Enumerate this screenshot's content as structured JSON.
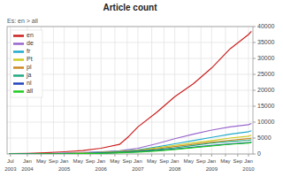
{
  "chart_data": {
    "type": "line",
    "title": "Article count",
    "subtitle": "Es: en > all",
    "xlim": [
      2003.45,
      2010.12
    ],
    "xticks": [
      {
        "value": 2003.542,
        "label": "Jul"
      },
      {
        "value": 2004.0,
        "label": "Jan"
      },
      {
        "value": 2004.375,
        "label": "May"
      },
      {
        "value": 2004.708,
        "label": "Sep"
      },
      {
        "value": 2005.0,
        "label": "Jan"
      },
      {
        "value": 2005.375,
        "label": "May"
      },
      {
        "value": 2005.708,
        "label": "Sep"
      },
      {
        "value": 2006.0,
        "label": "Jan"
      },
      {
        "value": 2006.375,
        "label": "May"
      },
      {
        "value": 2006.708,
        "label": "Sep"
      },
      {
        "value": 2007.0,
        "label": "Jan"
      },
      {
        "value": 2007.375,
        "label": "May"
      },
      {
        "value": 2007.708,
        "label": "Sep"
      },
      {
        "value": 2008.0,
        "label": "Jan"
      },
      {
        "value": 2008.375,
        "label": "May"
      },
      {
        "value": 2008.708,
        "label": "Sep"
      },
      {
        "value": 2009.0,
        "label": "Jan"
      },
      {
        "value": 2009.375,
        "label": "May"
      },
      {
        "value": 2009.708,
        "label": "Sep"
      },
      {
        "value": 2010.0,
        "label": "Jan"
      }
    ],
    "annotations": [
      {
        "x": 2003.542,
        "text": "2003"
      },
      {
        "x": 2004.0,
        "text": "2004"
      },
      {
        "x": 2005.0,
        "text": "2005"
      },
      {
        "x": 2006.0,
        "text": "2006"
      },
      {
        "x": 2007.0,
        "text": "2007"
      },
      {
        "x": 2008.0,
        "text": "2008"
      },
      {
        "x": 2009.0,
        "text": "2009"
      },
      {
        "x": 2010.0,
        "text": "2010"
      }
    ],
    "ylim": [
      0,
      40000
    ],
    "yticks": [
      0,
      5000,
      10000,
      15000,
      20000,
      25000,
      30000,
      35000,
      40000
    ],
    "grid": true,
    "legend": "upper left",
    "series": [
      {
        "name": "en",
        "color": "#cc2020",
        "x": [
          2003.5,
          2004.0,
          2004.5,
          2005.0,
          2005.5,
          2006.0,
          2006.5,
          2006.75,
          2007.0,
          2007.5,
          2008.0,
          2008.5,
          2009.0,
          2009.5,
          2010.0,
          2010.08
        ],
        "values": [
          80,
          200,
          400,
          700,
          1100,
          1800,
          3000,
          5500,
          8500,
          13000,
          18000,
          22000,
          27000,
          33000,
          37500,
          38500
        ]
      },
      {
        "name": "de",
        "color": "#9966cc",
        "x": [
          2003.5,
          2004.0,
          2004.5,
          2005.0,
          2005.5,
          2006.0,
          2006.5,
          2007.0,
          2007.5,
          2008.0,
          2008.5,
          2009.0,
          2009.5,
          2010.0,
          2010.08
        ],
        "values": [
          30,
          60,
          120,
          250,
          450,
          700,
          1000,
          1800,
          3200,
          4800,
          6200,
          7500,
          8500,
          9200,
          9600
        ]
      },
      {
        "name": "fr",
        "color": "#20aacc",
        "x": [
          2003.5,
          2004.0,
          2004.5,
          2005.0,
          2005.5,
          2006.0,
          2006.5,
          2007.0,
          2007.5,
          2008.0,
          2008.5,
          2009.0,
          2009.5,
          2010.0,
          2010.08
        ],
        "values": [
          15,
          30,
          70,
          180,
          320,
          550,
          850,
          1300,
          2200,
          3200,
          4200,
          5200,
          6200,
          7000,
          7300
        ]
      },
      {
        "name": "Pt",
        "color": "#cccc20",
        "x": [
          2003.5,
          2004.0,
          2004.5,
          2005.0,
          2005.5,
          2006.0,
          2006.5,
          2007.0,
          2007.5,
          2008.0,
          2008.5,
          2009.0,
          2009.5,
          2010.0,
          2010.08
        ],
        "values": [
          8,
          18,
          45,
          130,
          280,
          480,
          780,
          1150,
          1900,
          2700,
          3500,
          4200,
          5000,
          5600,
          5900
        ]
      },
      {
        "name": "pl",
        "color": "#cc8820",
        "x": [
          2003.5,
          2004.0,
          2004.5,
          2005.0,
          2005.5,
          2006.0,
          2006.5,
          2007.0,
          2007.5,
          2008.0,
          2008.5,
          2009.0,
          2009.5,
          2010.0,
          2010.08
        ],
        "values": [
          4,
          12,
          35,
          90,
          230,
          430,
          670,
          1050,
          1600,
          2300,
          3000,
          3700,
          4300,
          4800,
          5000
        ]
      },
      {
        "name": "ja",
        "color": "#20aa80",
        "x": [
          2003.5,
          2004.0,
          2004.5,
          2005.0,
          2005.5,
          2006.0,
          2006.5,
          2007.0,
          2007.5,
          2008.0,
          2008.5,
          2009.0,
          2009.5,
          2010.0,
          2010.08
        ],
        "values": [
          4,
          9,
          25,
          70,
          180,
          370,
          620,
          920,
          1350,
          1950,
          2700,
          3400,
          3900,
          4300,
          4500
        ]
      },
      {
        "name": "nl",
        "color": "#2244bb",
        "x": [
          2003.5,
          2004.0,
          2004.5,
          2005.0,
          2005.5,
          2006.0,
          2006.5,
          2007.0,
          2007.5,
          2008.0,
          2008.5,
          2009.0,
          2009.5,
          2010.0,
          2010.08
        ],
        "values": [
          3,
          8,
          20,
          55,
          120,
          260,
          460,
          720,
          1050,
          1550,
          2100,
          2650,
          3150,
          3550,
          3750
        ]
      },
      {
        "name": "all",
        "color": "#20cc20",
        "x": [
          2003.5,
          2004.0,
          2004.5,
          2005.0,
          2005.5,
          2006.0,
          2006.5,
          2007.0,
          2007.5,
          2008.0,
          2008.5,
          2009.0,
          2009.5,
          2010.0,
          2010.08
        ],
        "values": [
          3,
          6,
          15,
          45,
          90,
          180,
          370,
          600,
          950,
          1400,
          2000,
          2550,
          3050,
          3450,
          3650
        ]
      }
    ]
  }
}
